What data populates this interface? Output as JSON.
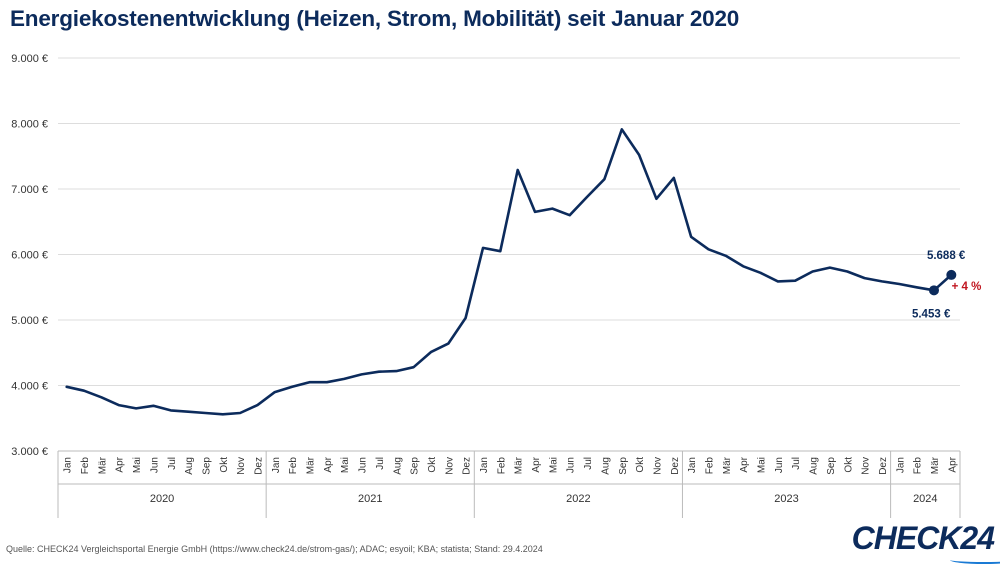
{
  "title": "Energiekostenentwicklung (Heizen, Strom, Mobilität) seit Januar 2020",
  "source": "Quelle: CHECK24 Vergleichsportal Energie GmbH (https://www.check24.de/strom-gas/); ADAC; esyoil; KBA; statista; Stand: 29.4.2024",
  "logo": "CHECK24",
  "colors": {
    "line": "#0c2b5c",
    "highlight": "#c0151f",
    "grid": "#dddddd",
    "text": "#333333"
  },
  "chart_data": {
    "type": "line",
    "title": "Energiekostenentwicklung (Heizen, Strom, Mobilität) seit Januar 2020",
    "xlabel": "",
    "ylabel": "",
    "ylim": [
      3000,
      9000
    ],
    "yticks": [
      3000,
      4000,
      5000,
      6000,
      7000,
      8000,
      9000
    ],
    "ytick_labels": [
      "3.000 €",
      "4.000 €",
      "5.000 €",
      "6.000 €",
      "7.000 €",
      "8.000 €",
      "9.000 €"
    ],
    "grid": true,
    "categories": [
      "Jan",
      "Feb",
      "Mär",
      "Apr",
      "Mai",
      "Jun",
      "Jul",
      "Aug",
      "Sep",
      "Okt",
      "Nov",
      "Dez",
      "Jan",
      "Feb",
      "Mär",
      "Apr",
      "Mai",
      "Jun",
      "Jul",
      "Aug",
      "Sep",
      "Okt",
      "Nov",
      "Dez",
      "Jan",
      "Feb",
      "Mär",
      "Apr",
      "Mai",
      "Jun",
      "Jul",
      "Aug",
      "Sep",
      "Okt",
      "Nov",
      "Dez",
      "Jan",
      "Feb",
      "Mär",
      "Apr",
      "Mai",
      "Jun",
      "Jul",
      "Aug",
      "Sep",
      "Okt",
      "Nov",
      "Dez",
      "Jan",
      "Feb",
      "Mär",
      "Apr"
    ],
    "years": [
      {
        "label": "2020",
        "count": 12
      },
      {
        "label": "2021",
        "count": 12
      },
      {
        "label": "2022",
        "count": 12
      },
      {
        "label": "2023",
        "count": 12
      },
      {
        "label": "2024",
        "count": 4
      }
    ],
    "series": [
      {
        "name": "Energiekosten",
        "values": [
          3980,
          3920,
          3820,
          3700,
          3650,
          3690,
          3620,
          3600,
          3580,
          3560,
          3580,
          3700,
          3900,
          3980,
          4050,
          4050,
          4100,
          4170,
          4210,
          4220,
          4280,
          4510,
          4640,
          5030,
          6100,
          6050,
          7290,
          6650,
          6700,
          6600,
          6880,
          7150,
          7910,
          7520,
          6850,
          7170,
          6270,
          6080,
          5980,
          5820,
          5720,
          5590,
          5600,
          5740,
          5800,
          5740,
          5640,
          5590,
          5550,
          5500,
          5453,
          5688
        ]
      }
    ],
    "annotations": [
      {
        "index": 50,
        "text": "5.453 €"
      },
      {
        "index": 51,
        "text": "5.688 €"
      },
      {
        "index": 51,
        "text": "+ 4 %"
      }
    ]
  }
}
